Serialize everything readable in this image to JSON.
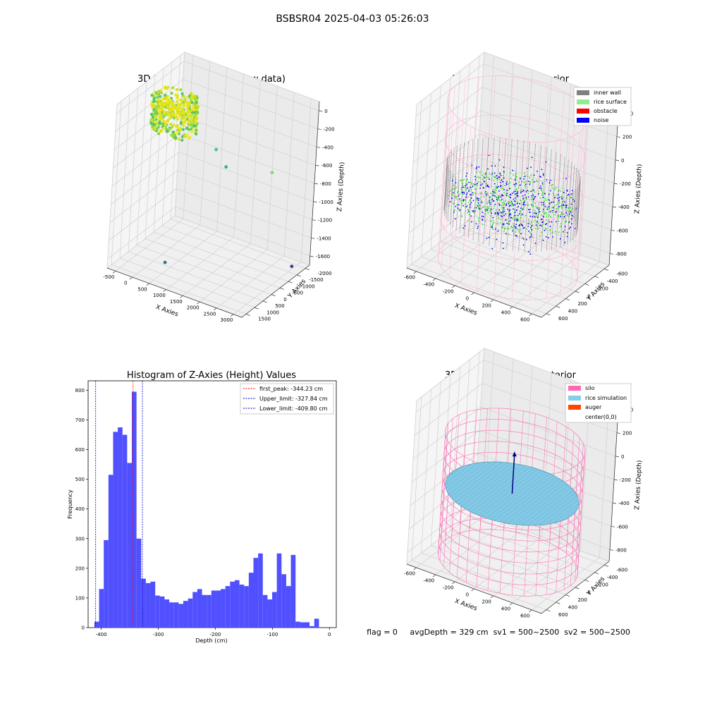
{
  "figure": {
    "suptitle": "BSBSR04 2025-04-03 05:26:03",
    "status_line": "flag = 0     avgDepth = 329 cm  sv1 = 500~2500  sv2 = 500~2500",
    "colors": {
      "pane": "#f2f2f2",
      "grid": "#d0d0d0",
      "axis": "#333333"
    }
  },
  "chart_data": [
    {
      "type": "scatter",
      "title": "3D Plot of Silo Interior(row data)",
      "xlabel": "X Axies",
      "ylabel": "Y Axies",
      "zlabel": "Z Axies (Depth)",
      "xticks": [
        "-500",
        "0",
        "500",
        "1000",
        "1500",
        "2000",
        "2500",
        "3000"
      ],
      "yticks": [
        "1500",
        "1000",
        "500",
        "0",
        "-500",
        "-1000",
        "-1500",
        "-2000"
      ],
      "zticks": [
        "0",
        "-200",
        "-400",
        "-600",
        "-800",
        "-1000",
        "-1200",
        "-1400",
        "-1600"
      ],
      "xlim": [
        -600,
        3200
      ],
      "ylim": [
        -2100,
        1600
      ],
      "zlim": [
        -1700,
        50
      ],
      "colormap": "viridis",
      "cluster": {
        "x_range": [
          -650,
          650
        ],
        "y_range": [
          -650,
          650
        ],
        "z_range": [
          -100,
          -450
        ]
      },
      "outliers": [
        {
          "x": 1200,
          "y": 0,
          "z": -500,
          "color": "#4fbf8f"
        },
        {
          "x": 1600,
          "y": -200,
          "z": -600,
          "color": "#3dae8a"
        },
        {
          "x": 2400,
          "y": 800,
          "z": -700,
          "color": "#88d27a"
        },
        {
          "x": 700,
          "y": -1500,
          "z": -1550,
          "color": "#2c728e"
        },
        {
          "x": 3000,
          "y": 1000,
          "z": -1650,
          "color": "#5b2d8c"
        }
      ]
    },
    {
      "type": "scatter",
      "title": "3D classify of Silo Interior",
      "xlabel": "X Axies",
      "ylabel": "Y Axies",
      "zlabel": "Z Axies (Depth)",
      "xticks": [
        "-600",
        "-400",
        "-200",
        "0",
        "200",
        "400",
        "600"
      ],
      "yticks": [
        "600",
        "400",
        "200",
        "0",
        "-200",
        "-400",
        "-600"
      ],
      "zticks": [
        "400",
        "200",
        "0",
        "-200",
        "-400",
        "-600",
        "-800"
      ],
      "xlim": [
        -700,
        700
      ],
      "ylim": [
        -700,
        700
      ],
      "zlim": [
        -900,
        450
      ],
      "legend": [
        {
          "label": "inner wall",
          "color": "#808080"
        },
        {
          "label": "rice surface",
          "color": "#90ee90"
        },
        {
          "label": "obstacle",
          "color": "#ff0000"
        },
        {
          "label": "noise",
          "color": "#0000ff"
        }
      ],
      "silo": {
        "radius": 650,
        "z_top": 400,
        "z_bottom": -900,
        "color": "#ffb6d9"
      }
    },
    {
      "type": "bar",
      "title": "Histogram of Z-Axies (Height) Values",
      "xlabel": "Depth (cm)",
      "ylabel": "Frequency",
      "bin_start": -412,
      "bin_width": 8.2,
      "values": [
        20,
        130,
        295,
        515,
        660,
        675,
        650,
        555,
        795,
        300,
        165,
        150,
        155,
        108,
        105,
        95,
        85,
        85,
        80,
        90,
        98,
        120,
        130,
        110,
        110,
        125,
        125,
        130,
        140,
        155,
        160,
        145,
        140,
        185,
        235,
        250,
        110,
        95,
        120,
        250,
        180,
        140,
        245,
        20,
        18,
        18,
        5,
        30
      ],
      "xticks": [
        "-400",
        "-300",
        "-200",
        "-100",
        "0"
      ],
      "yticks": [
        "0",
        "100",
        "200",
        "300",
        "400",
        "500",
        "600",
        "700",
        "800"
      ],
      "xlim": [
        -423,
        12
      ],
      "ylim": [
        0,
        832
      ],
      "bar_color": "#5050ff",
      "grid": false,
      "legend_position": "top-right",
      "vlines": [
        {
          "label": "first_peak: -344.23 cm",
          "x": -344.23,
          "color": "#ff0000"
        },
        {
          "label": "Upper_limit: -327.84 cm",
          "x": -327.84,
          "color": "#0000cc"
        },
        {
          "label": "Lower_limit: -409.80 cm",
          "x": -409.8,
          "color": "#0000cc"
        }
      ]
    },
    {
      "type": "surface",
      "title": "3D simulation of Silo Interior",
      "xlabel": "X Axies",
      "ylabel": "Y Axies",
      "zlabel": "Z Axies (Depth)",
      "xticks": [
        "-600",
        "-400",
        "-200",
        "0",
        "200",
        "400",
        "600"
      ],
      "yticks": [
        "600",
        "400",
        "200",
        "0",
        "-200",
        "-400",
        "-600"
      ],
      "zticks": [
        "400",
        "200",
        "0",
        "-200",
        "-400",
        "-600",
        "-800"
      ],
      "xlim": [
        -700,
        700
      ],
      "ylim": [
        -700,
        700
      ],
      "zlim": [
        -900,
        450
      ],
      "legend": [
        {
          "label": "silo",
          "color": "#ff69b4"
        },
        {
          "label": "rice simulation",
          "color": "#87ceeb"
        },
        {
          "label": "auger",
          "color": "#ff4500"
        },
        {
          "label": "center(0,0)",
          "color": ""
        }
      ],
      "silo": {
        "radius": 650,
        "z_top": 100,
        "z_bottom": -900,
        "color": "#ff69b4"
      },
      "surface_z": -330,
      "surface_color": "#87ceeb"
    }
  ]
}
